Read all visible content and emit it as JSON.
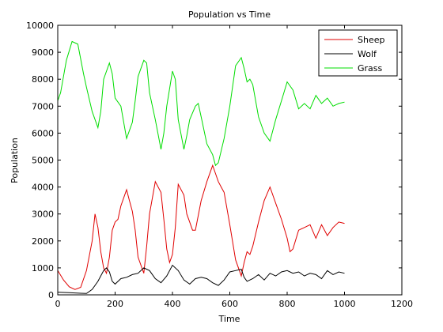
{
  "chart_data": {
    "type": "line",
    "title": "Population vs Time",
    "xlabel": "Time",
    "ylabel": "Population",
    "xlim": [
      0,
      1200
    ],
    "ylim": [
      0,
      10000
    ],
    "xticks": [
      0,
      200,
      400,
      600,
      800,
      1000,
      1200
    ],
    "yticks": [
      0,
      1000,
      2000,
      3000,
      4000,
      5000,
      6000,
      7000,
      8000,
      9000,
      10000
    ],
    "grid": false,
    "legend_position": "top-right",
    "series": [
      {
        "name": "Sheep",
        "color": "#e00000",
        "x": [
          0,
          20,
          40,
          60,
          80,
          100,
          120,
          130,
          140,
          150,
          160,
          170,
          180,
          190,
          200,
          210,
          220,
          240,
          250,
          260,
          270,
          280,
          300,
          310,
          320,
          340,
          360,
          370,
          380,
          390,
          400,
          410,
          420,
          440,
          450,
          460,
          470,
          480,
          500,
          520,
          540,
          550,
          560,
          570,
          580,
          600,
          620,
          640,
          650,
          660,
          670,
          680,
          700,
          720,
          740,
          760,
          780,
          800,
          810,
          820,
          840,
          860,
          880,
          900,
          920,
          940,
          960,
          980,
          1000
        ],
        "values": [
          900,
          550,
          300,
          200,
          280,
          900,
          2000,
          3000,
          2500,
          1600,
          1000,
          800,
          1400,
          2400,
          2700,
          2800,
          3300,
          3900,
          3500,
          3100,
          2400,
          1400,
          800,
          1800,
          3000,
          4200,
          3800,
          2800,
          1700,
          1200,
          1500,
          2500,
          4100,
          3700,
          3000,
          2700,
          2400,
          2400,
          3500,
          4200,
          4800,
          4500,
          4200,
          4000,
          3800,
          2600,
          1300,
          700,
          1200,
          1600,
          1500,
          1800,
          2700,
          3500,
          4000,
          3400,
          2800,
          2100,
          1600,
          1700,
          2400,
          2500,
          2600,
          2100,
          2600,
          2200,
          2500,
          2700,
          2650
        ]
      },
      {
        "name": "Wolf",
        "color": "#000000",
        "x": [
          0,
          40,
          80,
          100,
          120,
          140,
          160,
          170,
          180,
          190,
          200,
          220,
          240,
          260,
          280,
          300,
          320,
          340,
          360,
          380,
          400,
          420,
          440,
          460,
          480,
          500,
          520,
          540,
          560,
          580,
          600,
          620,
          640,
          650,
          660,
          680,
          700,
          720,
          740,
          760,
          780,
          800,
          820,
          840,
          860,
          880,
          900,
          920,
          940,
          960,
          980,
          1000
        ],
        "values": [
          100,
          80,
          60,
          50,
          200,
          500,
          900,
          1000,
          850,
          500,
          400,
          600,
          650,
          750,
          800,
          1000,
          900,
          600,
          450,
          700,
          1100,
          900,
          550,
          400,
          600,
          650,
          600,
          450,
          350,
          550,
          850,
          900,
          950,
          650,
          500,
          600,
          750,
          550,
          800,
          700,
          850,
          900,
          800,
          850,
          700,
          800,
          750,
          600,
          900,
          750,
          850,
          800
        ]
      },
      {
        "name": "Grass",
        "color": "#00dd00",
        "x": [
          0,
          10,
          30,
          50,
          70,
          90,
          100,
          120,
          140,
          150,
          160,
          180,
          190,
          200,
          220,
          230,
          240,
          260,
          270,
          280,
          300,
          310,
          320,
          340,
          360,
          370,
          380,
          400,
          410,
          420,
          440,
          450,
          460,
          480,
          490,
          500,
          520,
          540,
          550,
          560,
          580,
          600,
          620,
          640,
          650,
          660,
          670,
          680,
          700,
          720,
          740,
          760,
          780,
          800,
          820,
          840,
          860,
          880,
          900,
          920,
          940,
          960,
          980,
          1000
        ],
        "values": [
          7200,
          7500,
          8700,
          9400,
          9300,
          8200,
          7700,
          6800,
          6200,
          6800,
          8000,
          8600,
          8200,
          7300,
          7000,
          6400,
          5800,
          6400,
          7200,
          8100,
          8700,
          8600,
          7500,
          6500,
          5400,
          6000,
          7000,
          8300,
          8000,
          6500,
          5400,
          5900,
          6500,
          7000,
          7100,
          6600,
          5600,
          5200,
          4800,
          4900,
          5800,
          7000,
          8500,
          8800,
          8400,
          7900,
          8000,
          7800,
          6600,
          6000,
          5700,
          6500,
          7200,
          7900,
          7600,
          6900,
          7100,
          6900,
          7400,
          7100,
          7300,
          7000,
          7100,
          7150
        ]
      }
    ]
  }
}
